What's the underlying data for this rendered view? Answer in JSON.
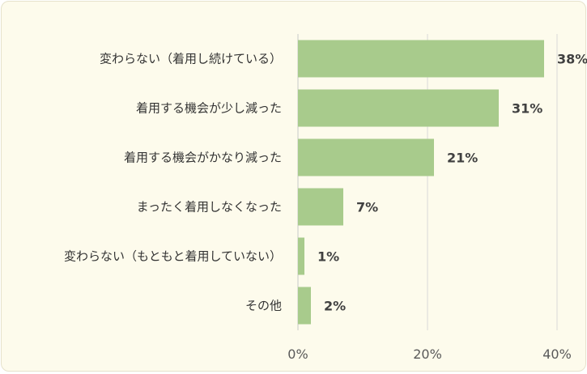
{
  "chart_data": {
    "type": "bar",
    "orientation": "horizontal",
    "categories": [
      "変わらない（着用し続けている）",
      "着用する機会が少し減った",
      "着用する機会がかなり減った",
      "まったく着用しなくなった",
      "変わらない（もともと着用していない）",
      "その他"
    ],
    "values": [
      38,
      31,
      21,
      7,
      1,
      2
    ],
    "data_labels": [
      "38%",
      "31%",
      "21%",
      "7%",
      "1%",
      "2%"
    ],
    "xlim": [
      0,
      40
    ],
    "xticks": [
      0,
      20,
      40
    ],
    "xtick_labels": [
      "0%",
      "20%",
      "40%"
    ],
    "title": "",
    "xlabel": "",
    "ylabel": "",
    "grid": "vertical",
    "legend": "none",
    "colors": {
      "bar": "#a8cb8c",
      "grid": "#d9d9d9",
      "background": "#fdfbec"
    }
  }
}
